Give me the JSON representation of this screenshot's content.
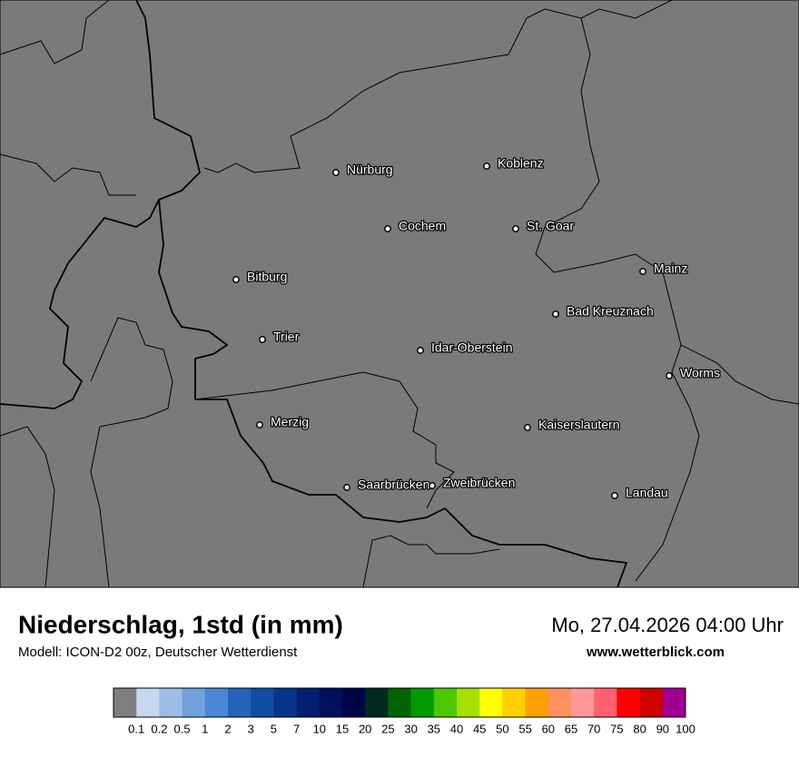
{
  "header": {
    "title": "Niederschlag, 1std (in mm)",
    "subtitle": "Modell: ICON-D2 00z, Deutscher Wetterdienst",
    "datetime": "Mo, 27.04.2026 04:00 Uhr",
    "website": "www.wetterblick.com"
  },
  "cities": [
    "Nürburg",
    "Koblenz",
    "Cochem",
    "St. Goar",
    "Bitburg",
    "Mainz",
    "Bad Kreuznach",
    "Trier",
    "Idar-Oberstein",
    "Worms",
    "Merzig",
    "Kaiserslautern",
    "Saarbrücken",
    "Zweibrücken",
    "Landau"
  ],
  "legend": {
    "colors": [
      "#7f7f7f",
      "#c6d7ef",
      "#9dbde8",
      "#6fa0dc",
      "#4a86d4",
      "#2563bb",
      "#114da3",
      "#06358a",
      "#021f70",
      "#010f5c",
      "#000545",
      "#002a20",
      "#006400",
      "#009a00",
      "#4cc800",
      "#a5e000",
      "#ffff00",
      "#ffd000",
      "#ffa000",
      "#ff9060",
      "#ff9898",
      "#ff6070",
      "#ff0000",
      "#d00000",
      "#a00090"
    ],
    "ticks": [
      0.1,
      0.2,
      0.5,
      1,
      2,
      3,
      5,
      7,
      10,
      15,
      20,
      25,
      30,
      35,
      40,
      45,
      50,
      55,
      60,
      65,
      70,
      75,
      80,
      90,
      100
    ]
  }
}
